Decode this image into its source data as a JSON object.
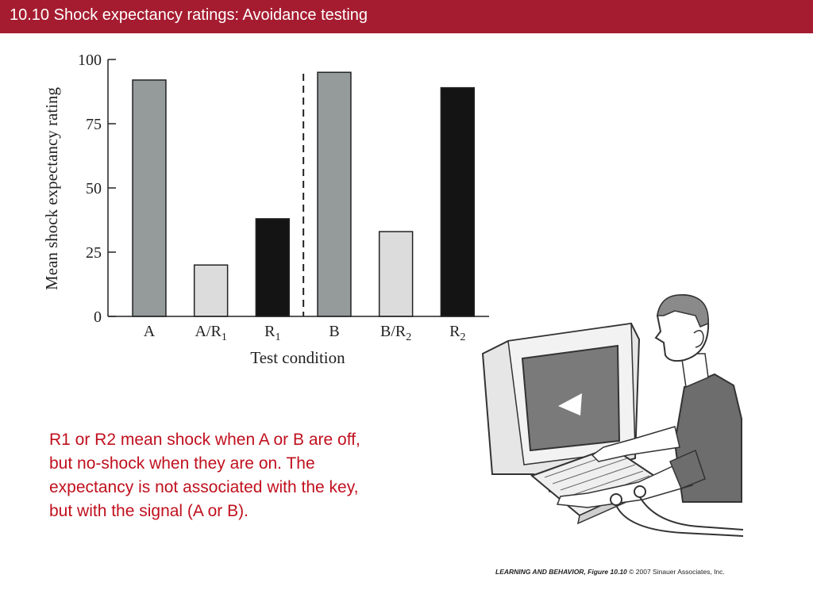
{
  "header": {
    "title": "10.10  Shock expectancy ratings: Avoidance testing"
  },
  "chart_data": {
    "type": "bar",
    "categories": [
      {
        "main": "A",
        "sub": ""
      },
      {
        "main": "A/R",
        "sub": "1"
      },
      {
        "main": "R",
        "sub": "1"
      },
      {
        "main": "B",
        "sub": ""
      },
      {
        "main": "B/R",
        "sub": "2"
      },
      {
        "main": "R",
        "sub": "2"
      }
    ],
    "values": [
      92,
      20,
      38,
      95,
      33,
      89
    ],
    "bar_colors": [
      "#959a9b",
      "#dcdcdc",
      "#141414",
      "#959a9b",
      "#dcdcdc",
      "#141414"
    ],
    "xlabel": "Test condition",
    "ylabel": "Mean shock expectancy rating",
    "yticks": [
      0,
      25,
      50,
      75,
      100
    ],
    "ylim": [
      0,
      100
    ],
    "divider_after_category": 2
  },
  "body_text": "R1 or R2 mean shock when A or B are off, but no-shock when they are on. The expectancy is not associated with the key, but with the signal (A or B).",
  "credit": {
    "source": "LEARNING AND BEHAVIOR, Figure 10.10",
    "copyright": "© 2007 Sinauer Associates, Inc."
  }
}
